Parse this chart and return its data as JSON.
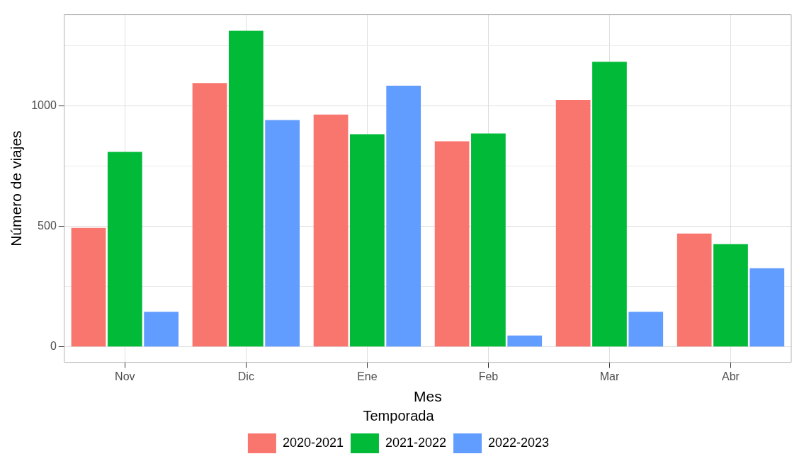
{
  "chart_data": {
    "type": "bar",
    "xlabel": "Mes",
    "ylabel": "Número de viajes",
    "legend_title": "Temporada",
    "categories": [
      "Nov",
      "Dic",
      "Ene",
      "Feb",
      "Mar",
      "Abr"
    ],
    "series": [
      {
        "name": "2020-2021",
        "color": "#f8766d",
        "values": [
          494,
          1096,
          965,
          854,
          1026,
          471
        ]
      },
      {
        "name": "2021-2022",
        "color": "#00ba38",
        "values": [
          810,
          1313,
          883,
          886,
          1184,
          427
        ]
      },
      {
        "name": "2022-2023",
        "color": "#619cff",
        "values": [
          146,
          942,
          1085,
          47,
          146,
          327
        ]
      }
    ],
    "ylim": [
      -64,
      1380
    ],
    "yticks": [
      0,
      {
        "value": 250,
        "label": null
      },
      500,
      {
        "value": 750,
        "label": null
      },
      1000,
      {
        "value": 1250,
        "label": null
      }
    ],
    "grid": true,
    "legend": "bottom"
  }
}
